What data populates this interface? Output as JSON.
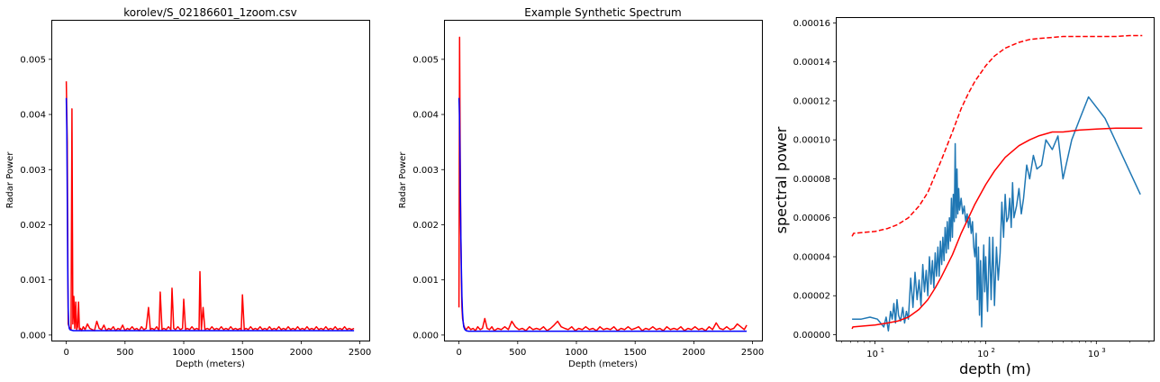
{
  "chart_data": [
    {
      "type": "line",
      "title": "korolev/S_02186601_1zoom.csv",
      "xlabel": "Depth (meters)",
      "ylabel": "Radar Power",
      "xlim": [
        -120,
        2580
      ],
      "ylim": [
        -0.0001,
        0.0057
      ],
      "xticks": [
        0,
        500,
        1000,
        1500,
        2000,
        2500
      ],
      "xtick_labels": [
        "0",
        "500",
        "1000",
        "1500",
        "2000",
        "2500"
      ],
      "yticks": [
        0.0,
        0.001,
        0.002,
        0.003,
        0.004,
        0.005
      ],
      "ytick_labels": [
        "0.000",
        "0.001",
        "0.002",
        "0.003",
        "0.004",
        "0.005"
      ],
      "grid": false,
      "series": [
        {
          "color": "#ff0000",
          "x": [
            0,
            8,
            16,
            24,
            32,
            40,
            48,
            56,
            64,
            72,
            80,
            88,
            96,
            104,
            112,
            120,
            130,
            145,
            160,
            180,
            200,
            220,
            240,
            260,
            280,
            300,
            320,
            340,
            360,
            380,
            400,
            420,
            440,
            460,
            480,
            500,
            520,
            540,
            560,
            580,
            600,
            620,
            640,
            660,
            680,
            700,
            715,
            730,
            750,
            770,
            790,
            800,
            815,
            830,
            850,
            870,
            890,
            900,
            915,
            930,
            950,
            970,
            990,
            1000,
            1015,
            1030,
            1050,
            1070,
            1090,
            1110,
            1130,
            1138,
            1150,
            1165,
            1180,
            1200,
            1220,
            1240,
            1260,
            1280,
            1300,
            1320,
            1340,
            1360,
            1380,
            1400,
            1420,
            1440,
            1460,
            1480,
            1490,
            1500,
            1515,
            1530,
            1550,
            1570,
            1590,
            1610,
            1630,
            1650,
            1670,
            1690,
            1710,
            1730,
            1750,
            1770,
            1790,
            1810,
            1830,
            1850,
            1870,
            1890,
            1910,
            1930,
            1950,
            1970,
            1990,
            2010,
            2030,
            2050,
            2070,
            2090,
            2110,
            2130,
            2150,
            2170,
            2190,
            2210,
            2230,
            2250,
            2270,
            2290,
            2310,
            2330,
            2350,
            2370,
            2390,
            2410,
            2430,
            2450
          ],
          "y": [
            0.0046,
            0.0035,
            0.0002,
            0.00015,
            0.00012,
            0.0001,
            0.0041,
            0.0002,
            0.0007,
            0.00012,
            0.0006,
            0.0001,
            0.00015,
            0.0006,
            0.0001,
            0.00012,
            8e-05,
            0.00015,
            0.0001,
            0.0002,
            0.00012,
            0.0001,
            8e-05,
            0.00025,
            0.00012,
            0.0001,
            0.00018,
            8e-05,
            0.00012,
            0.0001,
            0.00015,
            8e-05,
            0.00012,
            0.0001,
            0.00018,
            8e-05,
            0.00012,
            0.0001,
            0.00015,
            0.0001,
            0.00012,
            8e-05,
            0.00015,
            0.0001,
            0.00012,
            0.0005,
            0.0001,
            0.00012,
            0.0001,
            0.00015,
            8e-05,
            0.00078,
            0.0001,
            0.00012,
            0.0001,
            0.00015,
            0.0001,
            0.00085,
            0.00012,
            0.0001,
            0.00015,
            0.0001,
            0.00012,
            0.00065,
            0.0001,
            0.00012,
            0.0001,
            0.00015,
            0.0001,
            0.00012,
            0.0001,
            0.00115,
            0.0001,
            0.0005,
            0.0001,
            0.00012,
            0.0001,
            0.00015,
            0.0001,
            0.00012,
            0.0001,
            0.00015,
            0.0001,
            0.00012,
            0.0001,
            0.00015,
            0.0001,
            0.00012,
            0.0001,
            0.00012,
            0.0001,
            0.00073,
            0.0001,
            0.00012,
            0.0001,
            0.00015,
            0.0001,
            0.00012,
            0.0001,
            0.00015,
            0.0001,
            0.00012,
            0.0001,
            0.00015,
            0.0001,
            0.00012,
            0.0001,
            0.00015,
            0.0001,
            0.00012,
            0.0001,
            0.00015,
            0.0001,
            0.00012,
            0.0001,
            0.00015,
            0.0001,
            0.00012,
            0.0001,
            0.00015,
            0.0001,
            0.00012,
            0.0001,
            0.00015,
            0.0001,
            0.00012,
            0.0001,
            0.00015,
            0.0001,
            0.00012,
            0.0001,
            0.00015,
            0.0001,
            0.00012,
            0.0001,
            0.00015,
            0.0001,
            0.00012,
            0.0001,
            0.00012
          ]
        },
        {
          "color": "#0000ff",
          "x": [
            0,
            4,
            8,
            12,
            16,
            20,
            25,
            30,
            40,
            60,
            100,
            200,
            500,
            1000,
            1500,
            2000,
            2450
          ],
          "y": [
            0.0043,
            0.0037,
            0.0025,
            0.0012,
            0.0005,
            0.0002,
            0.00012,
            0.0001,
            9e-05,
            8e-05,
            8e-05,
            8e-05,
            8e-05,
            8e-05,
            8e-05,
            8e-05,
            8e-05
          ]
        }
      ]
    },
    {
      "type": "line",
      "title": "Example Synthetic Spectrum",
      "xlabel": "Depth (meters)",
      "ylabel": "Radar Power",
      "xlim": [
        -120,
        2580
      ],
      "ylim": [
        -0.0001,
        0.0057
      ],
      "xticks": [
        0,
        500,
        1000,
        1500,
        2000,
        2500
      ],
      "xtick_labels": [
        "0",
        "500",
        "1000",
        "1500",
        "2000",
        "2500"
      ],
      "yticks": [
        0.0,
        0.001,
        0.002,
        0.003,
        0.004,
        0.005
      ],
      "ytick_labels": [
        "0.000",
        "0.001",
        "0.002",
        "0.003",
        "0.004",
        "0.005"
      ],
      "grid": false,
      "series": [
        {
          "color": "#ff0000",
          "x": [
            0,
            5,
            10,
            15,
            20,
            25,
            30,
            40,
            50,
            60,
            80,
            100,
            120,
            140,
            160,
            180,
            200,
            220,
            240,
            260,
            280,
            300,
            330,
            360,
            390,
            420,
            450,
            480,
            510,
            540,
            570,
            600,
            630,
            660,
            690,
            720,
            750,
            780,
            810,
            840,
            870,
            900,
            930,
            960,
            990,
            1020,
            1050,
            1080,
            1110,
            1140,
            1170,
            1200,
            1230,
            1260,
            1290,
            1320,
            1350,
            1380,
            1410,
            1440,
            1470,
            1500,
            1530,
            1560,
            1590,
            1620,
            1650,
            1680,
            1710,
            1740,
            1770,
            1800,
            1830,
            1860,
            1890,
            1920,
            1950,
            1980,
            2010,
            2040,
            2070,
            2100,
            2130,
            2160,
            2190,
            2220,
            2250,
            2280,
            2310,
            2340,
            2370,
            2400,
            2430,
            2450
          ],
          "y": [
            0.0005,
            0.0054,
            0.0035,
            0.002,
            0.001,
            0.0005,
            0.0003,
            0.00018,
            0.00012,
            0.0001,
            0.00015,
            0.0001,
            0.00012,
            8e-05,
            0.00015,
            0.0001,
            0.00012,
            0.0003,
            0.00012,
            0.0001,
            0.00015,
            8e-05,
            0.00012,
            0.0001,
            0.00015,
            0.0001,
            0.00025,
            0.00015,
            0.0001,
            0.00012,
            8e-05,
            0.00015,
            0.0001,
            0.00012,
            0.0001,
            0.00015,
            8e-05,
            0.00012,
            0.00018,
            0.00025,
            0.00015,
            0.00012,
            0.0001,
            0.00015,
            8e-05,
            0.00012,
            0.0001,
            0.00015,
            0.0001,
            0.00012,
            8e-05,
            0.00015,
            0.0001,
            0.00012,
            0.0001,
            0.00015,
            8e-05,
            0.00012,
            0.0001,
            0.00015,
            0.0001,
            0.00012,
            0.00015,
            8e-05,
            0.00012,
            0.0001,
            0.00015,
            0.0001,
            0.00012,
            8e-05,
            0.00015,
            0.0001,
            0.00012,
            0.0001,
            0.00015,
            8e-05,
            0.00012,
            0.0001,
            0.00015,
            0.0001,
            0.00012,
            8e-05,
            0.00015,
            0.0001,
            0.00022,
            0.00012,
            0.0001,
            0.00015,
            0.0001,
            0.00012,
            0.0002,
            0.00015,
            0.0001,
            0.00018
          ]
        },
        {
          "color": "#0000ff",
          "x": [
            0,
            4,
            8,
            12,
            16,
            20,
            25,
            30,
            35,
            40,
            50,
            60,
            80,
            100,
            200,
            500,
            1000,
            1500,
            2000,
            2450
          ],
          "y": [
            0.0043,
            0.004,
            0.0033,
            0.0025,
            0.0018,
            0.0012,
            0.0007,
            0.0004,
            0.00025,
            0.00015,
            0.0001,
            8e-05,
            7e-05,
            7e-05,
            7e-05,
            7e-05,
            7e-05,
            7e-05,
            7e-05,
            7e-05
          ]
        }
      ]
    },
    {
      "type": "line",
      "title": "",
      "xlabel": "depth (m)",
      "ylabel": "spectral power",
      "xscale": "log",
      "xlim": [
        4.5,
        3300
      ],
      "ylim": [
        -3e-06,
        0.0001625
      ],
      "xticks": [
        10,
        100,
        1000
      ],
      "xtick_exponents": [
        "1",
        "2",
        "3"
      ],
      "yticks": [
        0.0,
        2e-05,
        4e-05,
        6e-05,
        8e-05,
        0.0001,
        0.00012,
        0.00014,
        0.00016
      ],
      "ytick_labels": [
        "0.00000",
        "0.00002",
        "0.00004",
        "0.00006",
        "0.00008",
        "0.00010",
        "0.00012",
        "0.00014",
        "0.00016"
      ],
      "grid": false,
      "series": [
        {
          "color": "#1f77b4",
          "style": "solid",
          "x": [
            6.2,
            7.5,
            9,
            10.5,
            12,
            12.6,
            13.2,
            13.8,
            14.3,
            14.8,
            15.3,
            15.8,
            16.3,
            17,
            17.8,
            18.5,
            19.2,
            20,
            21,
            22,
            23,
            24,
            25,
            26,
            27,
            28,
            29,
            30,
            31,
            32,
            33,
            34,
            35,
            36,
            37,
            38,
            39,
            40,
            41,
            42,
            43,
            44,
            45,
            46,
            47,
            48,
            49,
            50,
            51,
            52,
            53,
            54,
            55,
            56,
            57,
            58,
            60,
            62,
            64,
            66,
            68,
            70,
            72,
            74,
            76,
            78,
            80,
            82,
            84,
            86,
            88,
            90,
            92,
            94,
            96,
            98,
            100,
            104,
            108,
            112,
            116,
            120,
            125,
            130,
            135,
            140,
            145,
            150,
            155,
            160,
            165,
            170,
            175,
            180,
            190,
            200,
            210,
            220,
            235,
            250,
            270,
            290,
            320,
            350,
            400,
            450,
            500,
            600,
            700,
            850,
            1200,
            2500
          ],
          "y": [
            8e-06,
            8e-06,
            9e-06,
            8e-06,
            4e-06,
            9e-06,
            2e-06,
            1.2e-05,
            8e-06,
            1.6e-05,
            6e-06,
            1.8e-05,
            1e-05,
            7e-06,
            1.4e-05,
            6e-06,
            1.2e-05,
            8e-06,
            2.9e-05,
            1.4e-05,
            3.2e-05,
            1.8e-05,
            2.8e-05,
            1.5e-05,
            3.6e-05,
            2.2e-05,
            3.3e-05,
            2e-05,
            4e-05,
            2.6e-05,
            3.8e-05,
            2.4e-05,
            4.2e-05,
            3e-05,
            4.5e-05,
            3e-05,
            4.8e-05,
            3.6e-05,
            5e-05,
            3.8e-05,
            5.5e-05,
            4.2e-05,
            5.8e-05,
            4.4e-05,
            6e-05,
            4.8e-05,
            7e-05,
            5e-05,
            7.2e-05,
            5.8e-05,
            9.8e-05,
            6e-05,
            8.5e-05,
            6.2e-05,
            7.5e-05,
            6.4e-05,
            7e-05,
            6.2e-05,
            6.6e-05,
            5.8e-05,
            6.2e-05,
            5.5e-05,
            6e-05,
            5.2e-05,
            5.8e-05,
            4.5e-05,
            4e-05,
            5.2e-05,
            1.8e-05,
            4.5e-05,
            1e-05,
            3.8e-05,
            4e-06,
            3e-05,
            4.6e-05,
            2.2e-05,
            4e-05,
            1.2e-05,
            5e-05,
            1.8e-05,
            5e-05,
            1.5e-05,
            4.5e-05,
            2.8e-05,
            4.2e-05,
            6.8e-05,
            5e-05,
            7.2e-05,
            5.8e-05,
            6e-05,
            7e-05,
            5.5e-05,
            7.8e-05,
            6e-05,
            6.6e-05,
            7.5e-05,
            6.2e-05,
            7e-05,
            8.7e-05,
            8e-05,
            9.2e-05,
            8.5e-05,
            8.7e-05,
            0.0001,
            9.5e-05,
            0.000102,
            8e-05,
            0.0001,
            0.00011,
            0.000122,
            0.000111,
            7.2e-05
          ]
        },
        {
          "color": "#ff0000",
          "style": "solid",
          "x": [
            6.2,
            6.3,
            8,
            10,
            13,
            16,
            20,
            25,
            30,
            35,
            40,
            50,
            60,
            70,
            80,
            100,
            120,
            150,
            200,
            250,
            300,
            400,
            500,
            700,
            1000,
            1500,
            2000,
            2600
          ],
          "y": [
            3e-06,
            4e-06,
            4.5e-06,
            5e-06,
            6e-06,
            7e-06,
            9e-06,
            1.3e-05,
            1.8e-05,
            2.4e-05,
            3e-05,
            4.1e-05,
            5.2e-05,
            6e-05,
            6.7e-05,
            7.7e-05,
            8.4e-05,
            9.1e-05,
            9.7e-05,
            0.0001,
            0.000102,
            0.000104,
            0.000104,
            0.000105,
            0.0001055,
            0.000106,
            0.000106,
            0.000106
          ]
        },
        {
          "color": "#ff0000",
          "style": "dashed",
          "x": [
            6.2,
            6.4,
            8,
            10,
            13,
            16,
            20,
            25,
            30,
            35,
            40,
            50,
            60,
            70,
            80,
            100,
            120,
            150,
            200,
            250,
            300,
            400,
            500,
            700,
            1000,
            1500,
            2000,
            2600
          ],
          "y": [
            5.05e-05,
            5.2e-05,
            5.25e-05,
            5.3e-05,
            5.45e-05,
            5.65e-05,
            6e-05,
            6.6e-05,
            7.3e-05,
            8.2e-05,
            9e-05,
            0.000104,
            0.000116,
            0.000124,
            0.00013,
            0.000138,
            0.000143,
            0.000147,
            0.00015,
            0.0001515,
            0.000152,
            0.0001525,
            0.000153,
            0.000153,
            0.000153,
            0.000153,
            0.0001535,
            0.0001535
          ]
        }
      ]
    }
  ]
}
